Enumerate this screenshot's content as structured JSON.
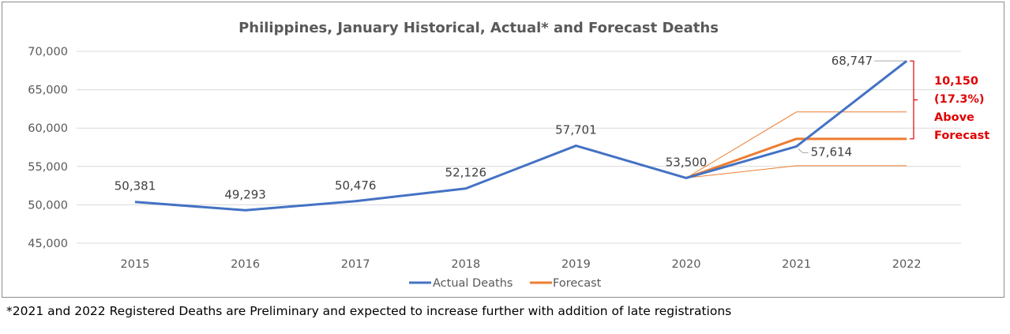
{
  "chart_data": {
    "type": "line",
    "title": "Philippines, January Historical, Actual* and Forecast Deaths",
    "categories": [
      "2015",
      "2016",
      "2017",
      "2018",
      "2019",
      "2020",
      "2021",
      "2022"
    ],
    "y_ticks": [
      "70,000",
      "65,000",
      "60,000",
      "55,000",
      "50,000",
      "45,000"
    ],
    "ylim": [
      45000,
      70000
    ],
    "grid": true,
    "legend_position": "bottom",
    "series": [
      {
        "name": "Actual Deaths",
        "color": "#4472c4",
        "values": [
          50381,
          49293,
          50476,
          52126,
          57701,
          53500,
          57614,
          68747
        ],
        "labels": [
          "50,381",
          "49,293",
          "50,476",
          "52,126",
          "57,701",
          "53,500",
          "57,614",
          "68,747"
        ]
      },
      {
        "name": "Forecast",
        "color": "#ed7d31",
        "points": [
          [
            "2020",
            53500
          ],
          [
            "2021",
            58597
          ],
          [
            "2022",
            58597
          ]
        ]
      }
    ],
    "forecast_bounds": {
      "color": "#ed7d31",
      "upper": [
        [
          "2020",
          53500
        ],
        [
          "2021",
          62100
        ],
        [
          "2022",
          62100
        ]
      ],
      "lower": [
        [
          "2020",
          53500
        ],
        [
          "2021",
          55100
        ],
        [
          "2022",
          55100
        ]
      ]
    },
    "annotation": {
      "lines": [
        "10,150",
        "(17.3%)",
        "Above",
        "Forecast"
      ],
      "color": "#e00000",
      "from_value": 58597,
      "to_value": 68747
    }
  },
  "footnote": "*2021 and 2022 Registered Deaths are Preliminary and expected to increase further with addition of late registrations"
}
